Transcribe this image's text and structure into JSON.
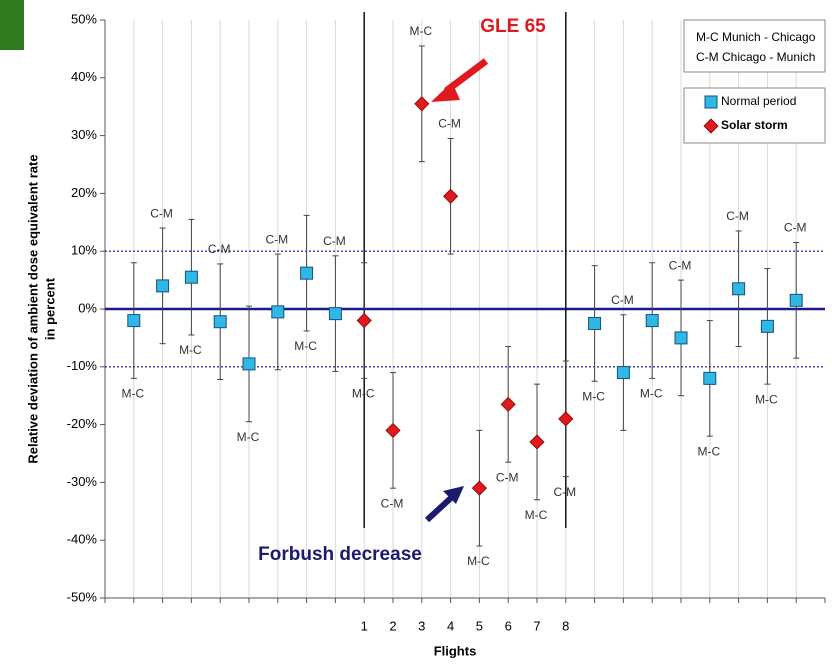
{
  "chart_data": {
    "type": "errorbar",
    "xlabel": "Flights",
    "ylabel_lines": [
      "Relative deviation of ambient dose equivalent rate",
      "in percent"
    ],
    "categories": [
      null,
      null,
      null,
      null,
      null,
      null,
      null,
      null,
      "1",
      "2",
      "3",
      "4",
      "5",
      "6",
      "7",
      "8",
      null,
      null,
      null,
      null,
      null,
      null,
      null,
      null
    ],
    "route_labels": [
      "M-C",
      "C-M",
      "M-C",
      "C-M",
      "M-C",
      "C-M",
      "M-C",
      "C-M",
      "M-C",
      "C-M",
      "M-C",
      "C-M",
      "M-C",
      "C-M",
      "M-C",
      "C-M",
      "M-C",
      "C-M",
      "M-C",
      "C-M",
      "M-C",
      "C-M",
      "M-C",
      "C-M"
    ],
    "series": [
      {
        "name": "Normal period",
        "color": "#2eb8e6",
        "marker": "square",
        "values": [
          -2,
          4,
          5.5,
          -2.2,
          -9.5,
          -0.5,
          6.2,
          -0.8,
          null,
          null,
          null,
          null,
          null,
          null,
          null,
          null,
          -2.5,
          -11,
          -2,
          -5,
          -12,
          3.5,
          -3,
          1.5
        ],
        "errors": [
          10,
          10,
          10,
          10,
          10,
          10,
          10,
          10,
          null,
          null,
          null,
          null,
          null,
          null,
          null,
          null,
          10,
          10,
          10,
          10,
          10,
          10,
          10,
          10
        ]
      },
      {
        "name": "Solar storm",
        "color": "#e0191f",
        "marker": "diamond",
        "values": [
          null,
          null,
          null,
          null,
          null,
          null,
          null,
          null,
          -2,
          -21,
          35.5,
          19.5,
          -31,
          -16.5,
          -23,
          -19,
          null,
          null,
          null,
          null,
          null,
          null,
          null,
          null
        ],
        "errors": [
          null,
          null,
          null,
          null,
          null,
          null,
          null,
          null,
          10,
          10,
          10,
          10,
          10,
          10,
          10,
          10,
          null,
          null,
          null,
          null,
          null,
          null,
          null,
          null
        ]
      }
    ],
    "ylim": [
      -50,
      50
    ],
    "yticks": [
      {
        "value": -50,
        "label": "-50%"
      },
      {
        "value": -40,
        "label": "-40%"
      },
      {
        "value": -30,
        "label": "-30%"
      },
      {
        "value": -20,
        "label": "-20%"
      },
      {
        "value": -10,
        "label": "-10%"
      },
      {
        "value": 0,
        "label": "0%"
      },
      {
        "value": 10,
        "label": "10%"
      },
      {
        "value": 20,
        "label": "20%"
      },
      {
        "value": 30,
        "label": "30%"
      },
      {
        "value": 40,
        "label": "40%"
      },
      {
        "value": 50,
        "label": "50%"
      }
    ],
    "hlines": [
      {
        "value": 10,
        "style": "dotted"
      },
      {
        "value": -10,
        "style": "dotted"
      },
      {
        "value": 0,
        "style": "solid"
      }
    ],
    "route_key": [
      "M-C Munich - Chicago",
      "C-M Chicago - Munich"
    ],
    "annotations": [
      {
        "text": "GLE 65",
        "color": "#e0191f"
      },
      {
        "text": "Forbush decrease",
        "color": "#1a1a6e"
      }
    ],
    "grid": true,
    "legend": "upper right"
  }
}
